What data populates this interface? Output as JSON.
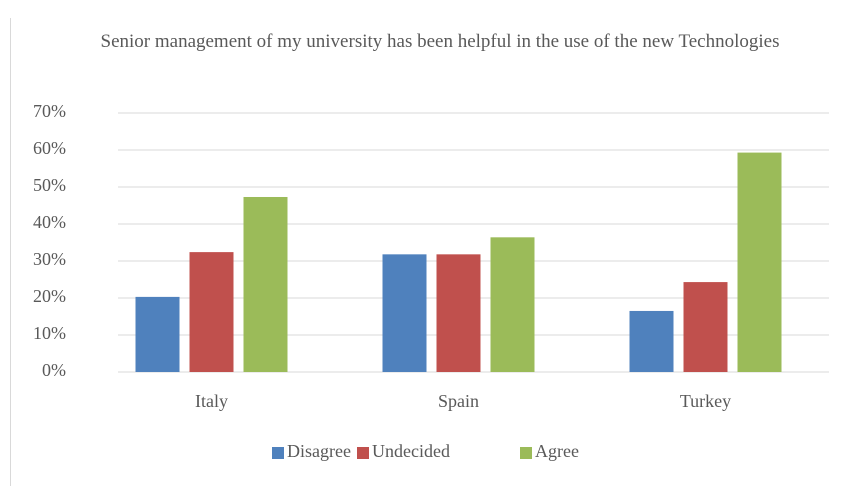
{
  "chart_data": {
    "type": "bar",
    "title": "Senior management of my university has been helpful in the use of the new Technologies",
    "categories": [
      "Italy",
      "Spain",
      "Turkey"
    ],
    "series": [
      {
        "name": "Disagree",
        "color": "#4f81bd",
        "values": [
          20.3,
          31.8,
          16.5
        ]
      },
      {
        "name": "Undecided",
        "color": "#c0504d",
        "values": [
          32.4,
          31.8,
          24.3
        ]
      },
      {
        "name": "Agree",
        "color": "#9bbb59",
        "values": [
          47.3,
          36.4,
          59.3
        ]
      }
    ],
    "ylim": [
      0,
      70
    ],
    "yticks": [
      {
        "value": 0,
        "label": "0%"
      },
      {
        "value": 10,
        "label": "10%"
      },
      {
        "value": 20,
        "label": "20%"
      },
      {
        "value": 30,
        "label": "30%"
      },
      {
        "value": 40,
        "label": "40%"
      },
      {
        "value": 50,
        "label": "50%"
      },
      {
        "value": 60,
        "label": "60%"
      },
      {
        "value": 70,
        "label": "70%"
      }
    ],
    "grid": true,
    "legend": "bottom"
  }
}
